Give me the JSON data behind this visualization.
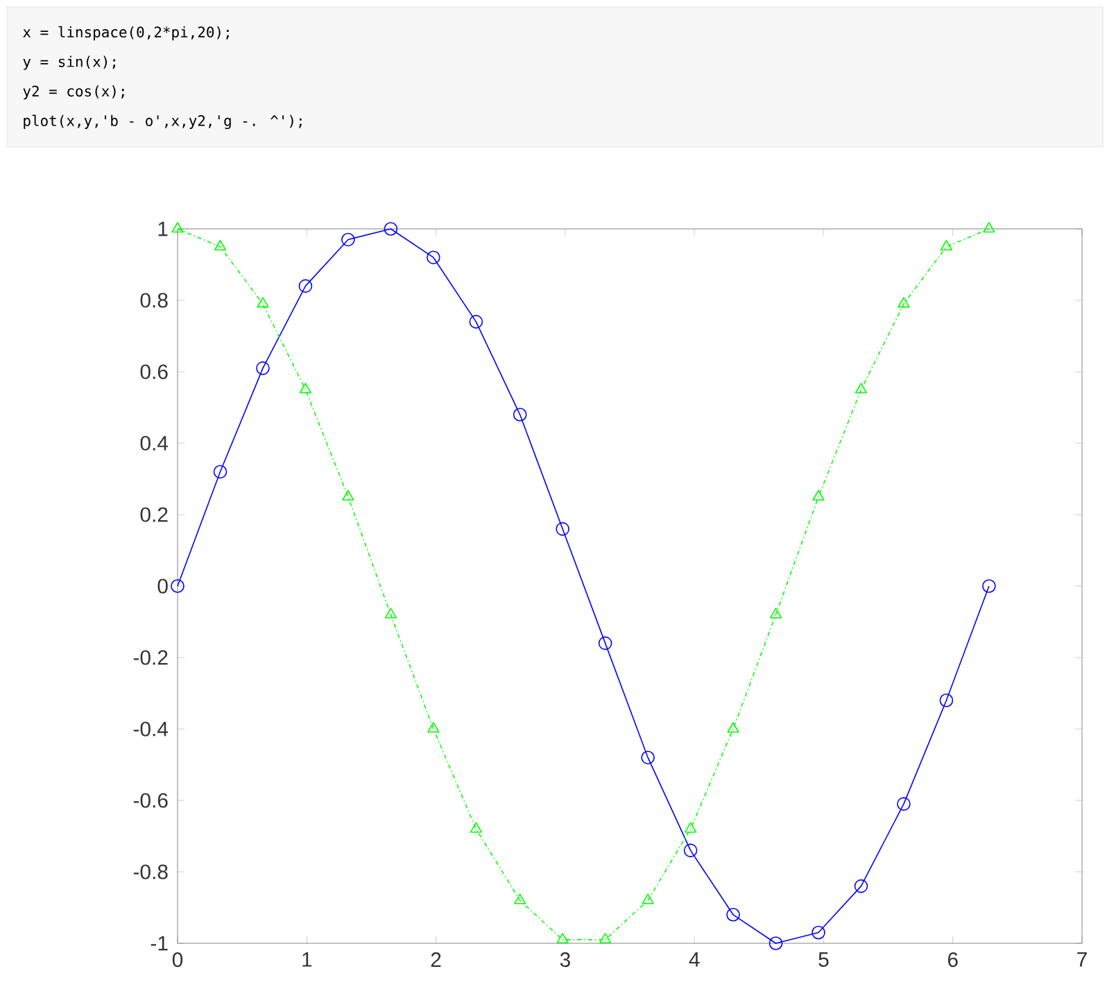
{
  "chart_data": {
    "type": "line",
    "annotations": [
      "x = linspace(0,2*pi,20);",
      "y = sin(x);",
      "y2 = cos(x);",
      "plot(x,y,'b - o',x,y2,'g -. ^');"
    ],
    "x": [
      0,
      0.33,
      0.66,
      0.99,
      1.32,
      1.65,
      1.98,
      2.31,
      2.65,
      2.98,
      3.31,
      3.64,
      3.97,
      4.3,
      4.63,
      4.96,
      5.29,
      5.62,
      5.95,
      6.28
    ],
    "series": [
      {
        "color": "#0000ff",
        "marker": "circle",
        "line_style": "solid",
        "values": [
          0,
          0.32,
          0.61,
          0.84,
          0.97,
          1.0,
          0.92,
          0.74,
          0.48,
          0.16,
          -0.16,
          -0.48,
          -0.74,
          -0.92,
          -1.0,
          -0.97,
          -0.84,
          -0.61,
          -0.32,
          0
        ]
      },
      {
        "color": "#00ff00",
        "marker": "triangle",
        "line_style": "dashdot",
        "values": [
          1,
          0.95,
          0.79,
          0.55,
          0.25,
          -0.08,
          -0.4,
          -0.68,
          -0.88,
          -0.99,
          -0.99,
          -0.88,
          -0.68,
          -0.4,
          -0.08,
          0.25,
          0.55,
          0.79,
          0.95,
          1
        ]
      }
    ],
    "xlim": [
      0,
      7
    ],
    "ylim": [
      -1,
      1
    ],
    "xticks": [
      0,
      1,
      2,
      3,
      4,
      5,
      6,
      7
    ],
    "yticks": [
      -1,
      -0.8,
      -0.6,
      -0.4,
      -0.2,
      0,
      0.2,
      0.4,
      0.6,
      0.8,
      1
    ],
    "grid": false
  }
}
